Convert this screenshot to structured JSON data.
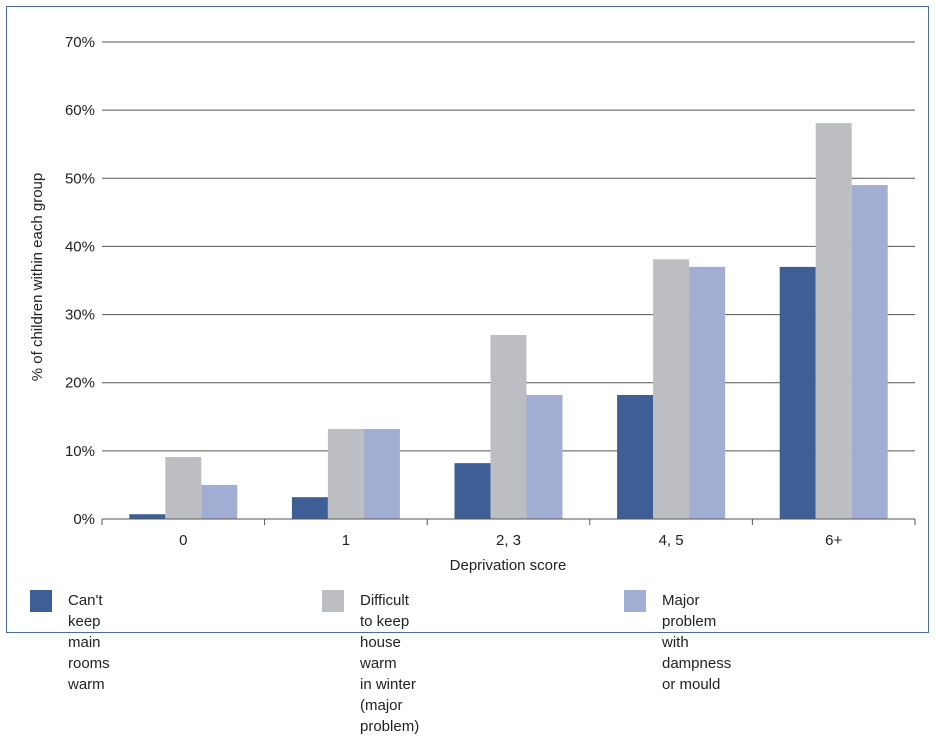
{
  "chart_data": {
    "type": "bar",
    "title": "",
    "xlabel": "Deprivation score",
    "ylabel": "% of children within each group",
    "ylim": [
      0,
      70
    ],
    "yticks": [
      "0%",
      "10%",
      "20%",
      "30%",
      "40%",
      "50%",
      "60%",
      "70%"
    ],
    "ytick_values": [
      0,
      10,
      20,
      30,
      40,
      50,
      60,
      70
    ],
    "categories": [
      "0",
      "1",
      "2, 3",
      "4, 5",
      "6+"
    ],
    "series": [
      {
        "name": "Can't keep main rooms warm",
        "color": "#3e5e96",
        "values": [
          0.7,
          3.2,
          8.2,
          18.2,
          37.0
        ]
      },
      {
        "name": "Difficult to keep house warm in winter (major problem)",
        "color": "#bdbec2",
        "values": [
          9.1,
          13.2,
          27.0,
          38.1,
          58.1
        ]
      },
      {
        "name": "Major problem with dampness or mould",
        "color": "#a2add3",
        "values": [
          5.0,
          13.2,
          18.2,
          37.0,
          49.0
        ]
      }
    ],
    "grid": true,
    "legend": "bottom"
  },
  "legend": {
    "items": [
      {
        "label": "Can't keep main rooms warm",
        "color": "#3e5e96"
      },
      {
        "label": "Difficult to keep house warm\nin winter (major problem)",
        "color": "#bdbec2"
      },
      {
        "label": "Major problem with dampness\nor mould",
        "color": "#a2add3"
      }
    ]
  }
}
